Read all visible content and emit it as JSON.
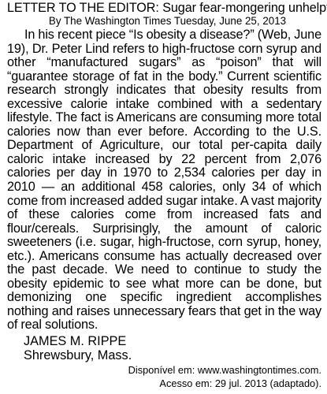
{
  "letter": {
    "heading": "LETTER TO THE EDITOR:",
    "headline": " Sugar fear-mongering unhelpful",
    "byline": "By The Washington Times Tuesday, June 25, 2013",
    "body": "In his recent piece “Is obesity a disease?” (Web, June 19), Dr. Peter Lind refers to high-fructose corn syrup and other “manufactured sugars” as “poison” that will “guarantee storage of fat in the body.” Current scientific research strongly indicates that obesity results from excessive calorie intake combined with a sedentary lifestyle. The fact is Americans are consuming more total calories now than ever before. According to the U.S. Department of Agriculture, our total per-capita daily caloric intake increased by 22 percent from 2,076 calories per day in 1970 to 2,534 calories per day in 2010 — an additional 458 calories, only 34 of which come from increased added sugar intake. A vast majority of these calories come from increased fats and flour/cereals. Surprisingly, the amount of caloric sweeteners (i.e. sugar, high-fructose, corn syrup, honey, etc.). Americans consume has actually decreased over the past decade. We need to continue to study the obesity epidemic to see what more can be done, but demonizing one specific ingredient accomplishes nothing and raises unnecessary fears that get in the way of real solutions.",
    "author": "JAMES M. RIPPE",
    "location": "Shrewsbury, Mass."
  },
  "source": {
    "available": "Disponível em: www.washingtontimes.com.",
    "accessed": "Acesso em: 29 jul. 2013 (adaptado)."
  }
}
